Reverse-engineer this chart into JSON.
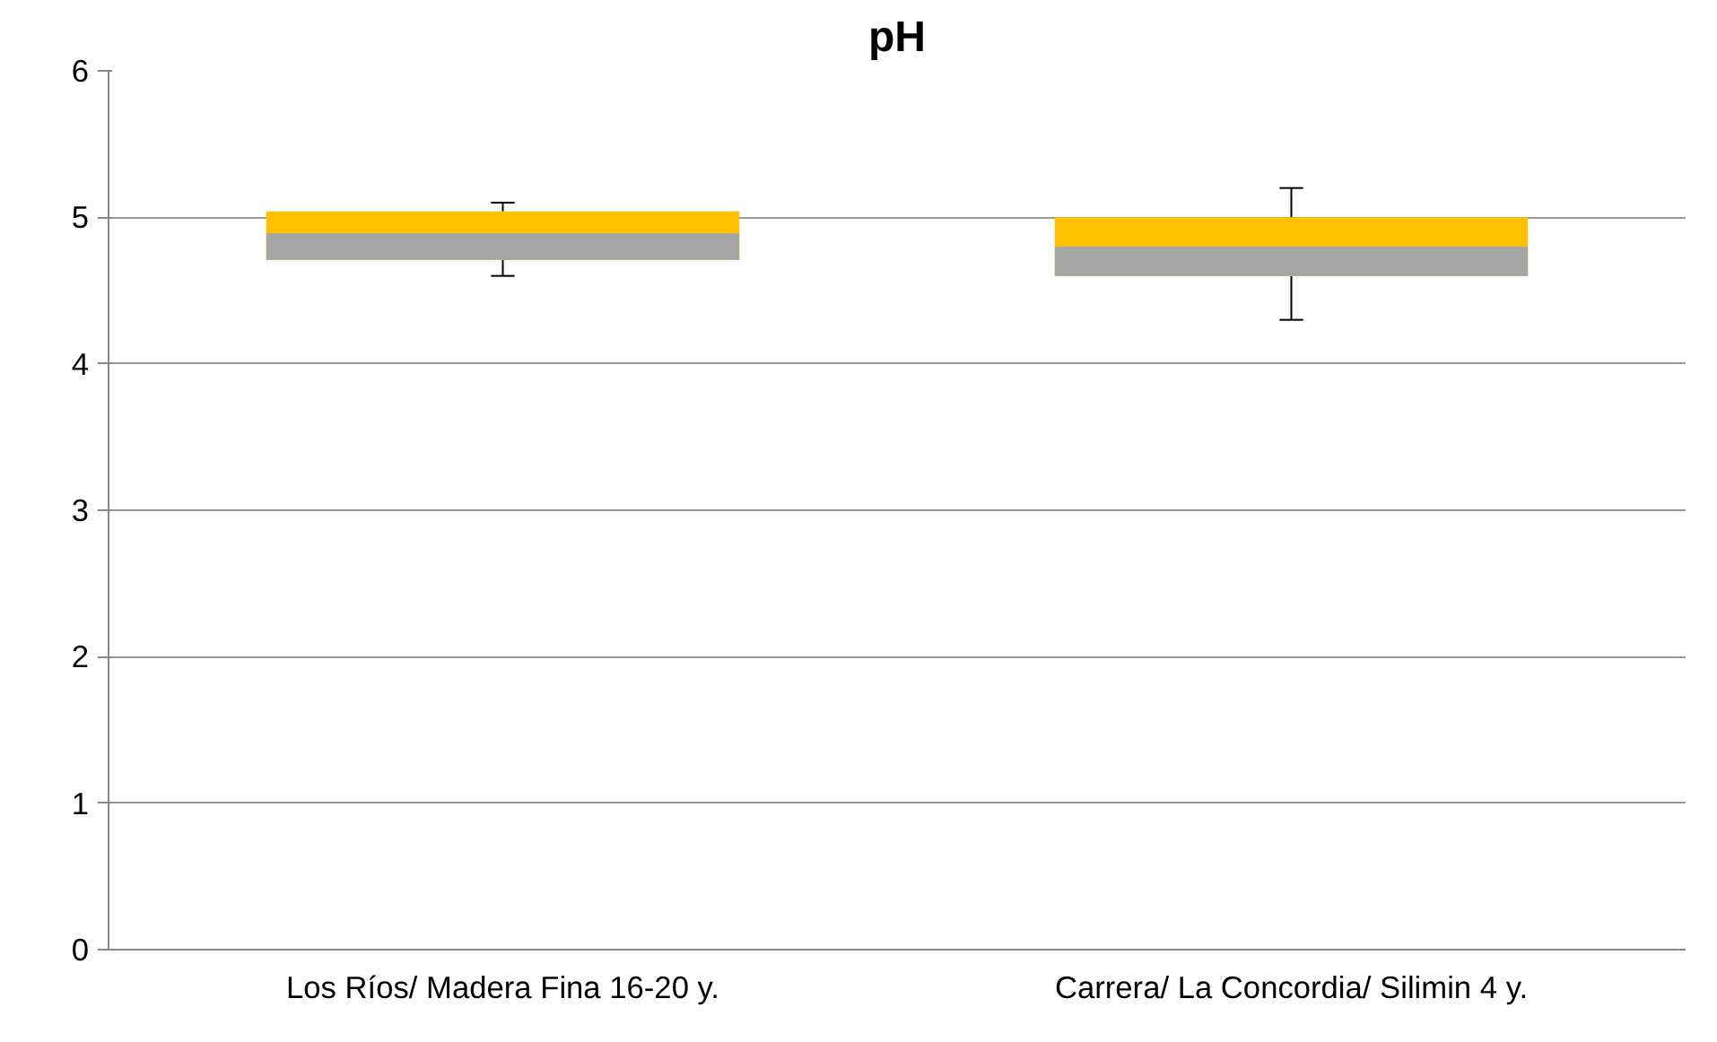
{
  "chart_data": {
    "type": "box",
    "title": "pH",
    "categories": [
      "Los Ríos/ Madera Fina 16-20 y.",
      "Carrera/ La Concordia/ Silimin 4 y."
    ],
    "series": [
      {
        "color": "#ffc000",
        "boxes": [
          {
            "low": 4.6,
            "q1": 4.71,
            "median": 4.89,
            "q3": 5.04,
            "high": 5.1
          },
          {
            "low": 4.3,
            "q1": 4.6,
            "median": 4.8,
            "q3": 5.0,
            "high": 5.2
          }
        ]
      }
    ],
    "ylim": [
      0,
      6
    ],
    "yticks": [
      0,
      1,
      2,
      3,
      4,
      5,
      6
    ],
    "grid": "y"
  }
}
